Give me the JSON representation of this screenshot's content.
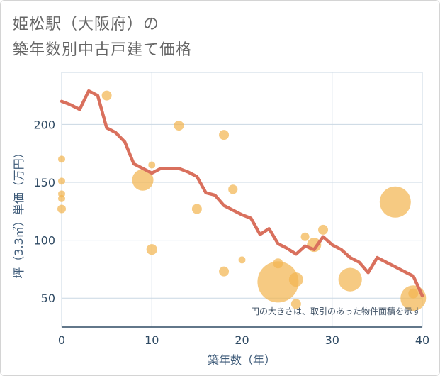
{
  "title_line1": "姫松駅（大阪府）の",
  "title_line2": "築年数別中古戸建て価格",
  "note": "円の大きさは、取引のあった物件面積を示す",
  "chart_data": {
    "type": "scatter",
    "title": "姫松駅（大阪府）の築年数別中古戸建て価格",
    "xlabel": "築年数（年）",
    "ylabel": "坪（3.3㎡）単価（万円）",
    "xlim": [
      0,
      40
    ],
    "ylim": [
      25,
      245
    ],
    "xticks": [
      0,
      10,
      20,
      30,
      40
    ],
    "yticks": [
      50,
      100,
      150,
      200
    ],
    "grid": true,
    "colors": {
      "line": "#d9705d",
      "bubble": "#f2b652",
      "grid": "#c9d7e3",
      "axis": "#2f4a63"
    },
    "series": [
      {
        "type": "line",
        "values": [
          [
            0,
            220
          ],
          [
            1,
            217
          ],
          [
            2,
            213
          ],
          [
            3,
            229
          ],
          [
            4,
            225
          ],
          [
            5,
            197
          ],
          [
            6,
            193
          ],
          [
            7,
            185
          ],
          [
            8,
            166
          ],
          [
            9,
            162
          ],
          [
            10,
            158
          ],
          [
            11,
            162
          ],
          [
            12,
            162
          ],
          [
            13,
            162
          ],
          [
            14,
            159
          ],
          [
            15,
            155
          ],
          [
            16,
            141
          ],
          [
            17,
            139
          ],
          [
            18,
            130
          ],
          [
            19,
            126
          ],
          [
            20,
            122
          ],
          [
            21,
            119
          ],
          [
            22,
            105
          ],
          [
            23,
            110
          ],
          [
            24,
            97
          ],
          [
            25,
            93
          ],
          [
            26,
            88
          ],
          [
            27,
            95
          ],
          [
            28,
            92
          ],
          [
            29,
            103
          ],
          [
            30,
            96
          ],
          [
            31,
            92
          ],
          [
            32,
            85
          ],
          [
            33,
            81
          ],
          [
            34,
            72
          ],
          [
            35,
            85
          ],
          [
            36,
            81
          ],
          [
            37,
            77
          ],
          [
            38,
            73
          ],
          [
            39,
            69
          ],
          [
            40,
            52
          ]
        ]
      },
      {
        "type": "bubble",
        "points": [
          {
            "x": 0,
            "y": 170,
            "size": 0.25
          },
          {
            "x": 0,
            "y": 151,
            "size": 0.25
          },
          {
            "x": 0,
            "y": 140,
            "size": 0.25
          },
          {
            "x": 0,
            "y": 136,
            "size": 0.25
          },
          {
            "x": 0,
            "y": 127,
            "size": 0.3
          },
          {
            "x": 5,
            "y": 225,
            "size": 0.35
          },
          {
            "x": 9,
            "y": 152,
            "size": 0.75
          },
          {
            "x": 10,
            "y": 165,
            "size": 0.25
          },
          {
            "x": 10,
            "y": 92,
            "size": 0.38
          },
          {
            "x": 13,
            "y": 199,
            "size": 0.35
          },
          {
            "x": 15,
            "y": 127,
            "size": 0.35
          },
          {
            "x": 18,
            "y": 191,
            "size": 0.35
          },
          {
            "x": 18,
            "y": 73,
            "size": 0.35
          },
          {
            "x": 19,
            "y": 144,
            "size": 0.33
          },
          {
            "x": 20,
            "y": 83,
            "size": 0.25
          },
          {
            "x": 24,
            "y": 80,
            "size": 0.35
          },
          {
            "x": 24,
            "y": 64,
            "size": 1.45
          },
          {
            "x": 26,
            "y": 66,
            "size": 0.5
          },
          {
            "x": 26,
            "y": 45,
            "size": 0.35
          },
          {
            "x": 27,
            "y": 103,
            "size": 0.3
          },
          {
            "x": 28,
            "y": 96,
            "size": 0.5
          },
          {
            "x": 29,
            "y": 109,
            "size": 0.35
          },
          {
            "x": 32,
            "y": 66,
            "size": 0.83
          },
          {
            "x": 37,
            "y": 133,
            "size": 1.1
          },
          {
            "x": 39,
            "y": 50,
            "size": 0.9
          },
          {
            "x": 39,
            "y": 54,
            "size": 0.35
          }
        ]
      }
    ]
  }
}
